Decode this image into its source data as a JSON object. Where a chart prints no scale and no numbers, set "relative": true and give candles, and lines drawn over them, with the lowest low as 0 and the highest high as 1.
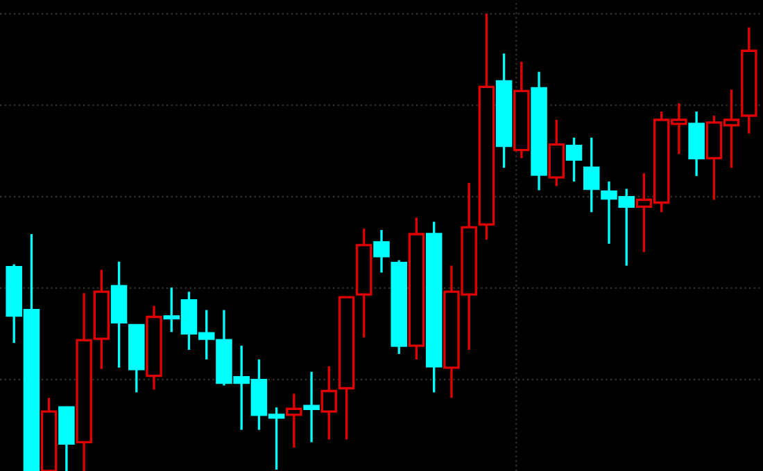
{
  "chart_data": {
    "type": "candlestick",
    "relative": true,
    "grid": true,
    "categories": [
      null,
      null,
      null,
      null,
      null,
      null,
      null,
      null,
      null,
      null,
      null,
      null,
      null,
      null,
      null,
      null,
      null,
      null,
      null,
      null,
      null,
      null,
      null,
      null,
      null,
      null,
      null,
      null,
      null,
      null,
      null,
      null,
      null,
      null,
      null,
      null,
      null,
      null,
      null,
      null,
      null,
      null,
      null
    ],
    "ohlc": [
      [
        0.446,
        0.452,
        0.28,
        0.34
      ],
      [
        0.352,
        0.518,
        0,
        0
      ],
      [
        0,
        0.16,
        0,
        0.13
      ],
      [
        0.139,
        0.139,
        0,
        0.06
      ],
      [
        0.063,
        0.389,
        0,
        0.286
      ],
      [
        0.289,
        0.44,
        0.223,
        0.392
      ],
      [
        0.404,
        0.458,
        0.226,
        0.325
      ],
      [
        0.319,
        0.319,
        0.172,
        0.223
      ],
      [
        0.208,
        0.361,
        0.178,
        0.337
      ],
      [
        0.337,
        0.401,
        0.304,
        0.334
      ],
      [
        0.373,
        0.392,
        0.265,
        0.301
      ],
      [
        0.301,
        0.352,
        0.244,
        0.289
      ],
      [
        0.286,
        0.352,
        0.187,
        0.193
      ],
      [
        0.205,
        0.274,
        0.09,
        0.193
      ],
      [
        0.199,
        0.244,
        0.09,
        0.123
      ],
      [
        0.123,
        0.139,
        0.003,
        0.117
      ],
      [
        0.123,
        0.169,
        0.051,
        0.136
      ],
      [
        0.142,
        0.217,
        0.063,
        0.136
      ],
      [
        0.13,
        0.229,
        0.069,
        0.175
      ],
      [
        0.181,
        0.38,
        0.069,
        0.38
      ],
      [
        0.386,
        0.53,
        0.292,
        0.494
      ],
      [
        0.5,
        0.527,
        0.434,
        0.47
      ],
      [
        0.455,
        0.461,
        0.256,
        0.274
      ],
      [
        0.274,
        0.554,
        0.244,
        0.518
      ],
      [
        0.518,
        0.545,
        0.172,
        0.229
      ],
      [
        0.226,
        0.449,
        0.16,
        0.392
      ],
      [
        0.386,
        0.63,
        0.265,
        0.533
      ],
      [
        0.539,
        1,
        0.506,
        0.84
      ],
      [
        0.852,
        0.913,
        0.663,
        0.711
      ],
      [
        0.702,
        0.895,
        0.684,
        0.831
      ],
      [
        0.837,
        0.873,
        0.614,
        0.648
      ],
      [
        0.642,
        0.768,
        0.623,
        0.714
      ],
      [
        0.711,
        0.729,
        0.633,
        0.681
      ],
      [
        0.663,
        0.729,
        0.566,
        0.617
      ],
      [
        0.611,
        0.633,
        0.497,
        0.596
      ],
      [
        0.599,
        0.617,
        0.449,
        0.578
      ],
      [
        0.578,
        0.651,
        0.479,
        0.593
      ],
      [
        0.587,
        0.786,
        0.566,
        0.768
      ],
      [
        0.759,
        0.804,
        0.693,
        0.768
      ],
      [
        0.759,
        0.786,
        0.645,
        0.684
      ],
      [
        0.684,
        0.777,
        0.593,
        0.762
      ],
      [
        0.756,
        0.834,
        0.663,
        0.768
      ],
      [
        0.777,
        0.97,
        0.738,
        0.919
      ]
    ],
    "colors": [
      "#00ffff",
      "#00ffff",
      "#e00000",
      "#00ffff",
      "#e00000",
      "#e00000",
      "#00ffff",
      "#00ffff",
      "#e00000",
      "#00ffff",
      "#00ffff",
      "#00ffff",
      "#00ffff",
      "#00ffff",
      "#00ffff",
      "#00ffff",
      "#e00000",
      "#00ffff",
      "#e00000",
      "#e00000",
      "#e00000",
      "#00ffff",
      "#00ffff",
      "#e00000",
      "#00ffff",
      "#e00000",
      "#e00000",
      "#e00000",
      "#00ffff",
      "#e00000",
      "#00ffff",
      "#e00000",
      "#00ffff",
      "#00ffff",
      "#00ffff",
      "#00ffff",
      "#e00000",
      "#e00000",
      "#e00000",
      "#00ffff",
      "#e00000",
      "#e00000",
      "#e00000"
    ]
  }
}
